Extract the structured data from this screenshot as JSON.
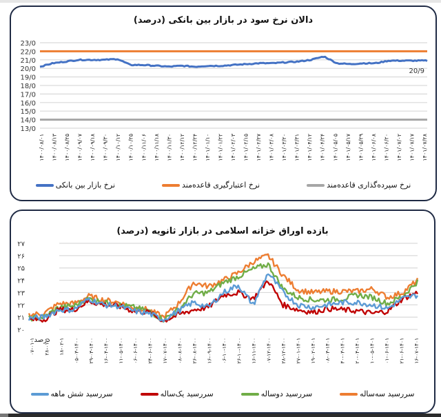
{
  "panel1": {
    "title": "دالان نرخ سود در بازار بین بانکی (درصد)",
    "legend": [
      {
        "label": "نرخ سپرده‌گذاری قاعده‌مند",
        "color": "#a6a6a6"
      },
      {
        "label": "نرخ اعتبارگیری قاعده‌مند",
        "color": "#ed7d31"
      },
      {
        "label": "نرخ بازار بین بانکی",
        "color": "#4472c4"
      }
    ]
  },
  "panel2": {
    "title": "بازده اوراق خزانه اسلامی در بازار ثانویه (درصد)",
    "unit_label": "درصد",
    "legend": [
      {
        "label": "سررسید سه‌ساله",
        "color": "#ed7d31"
      },
      {
        "label": "سررسید دوساله",
        "color": "#70ad47"
      },
      {
        "label": "سررسید یک‌ساله",
        "color": "#c00000"
      },
      {
        "label": "سررسید شش ماهه",
        "color": "#5b9bd5"
      }
    ]
  },
  "chart_data": [
    {
      "type": "line",
      "title": "دالان نرخ سود در بازار بین بانکی (درصد)",
      "xlabel": "",
      "ylabel": "",
      "ylim": [
        13,
        23
      ],
      "yticks": [
        "23/0",
        "22/0",
        "21/0",
        "20/0",
        "19/0",
        "18/0",
        "17/0",
        "16/0",
        "15/0",
        "14/0",
        "13/0"
      ],
      "categories": [
        "۱۴۰۰/۰۸/۰۱",
        "۱۴۰۰/۰۸/۱۳",
        "۱۴۰۰/۰۸/۲۵",
        "۱۴۰۰/۰۹/۰۷",
        "۱۴۰۰/۰۹/۱۸",
        "۱۴۰۰/۰۹/۳۰",
        "۱۴۰۰/۱۰/۱۲",
        "۱۴۰۰/۱۰/۲۵",
        "۱۴۰۰/۱۱/۰۶",
        "۱۴۰۰/۱۱/۱۸",
        "۱۴۰۰/۱۱/۳۰",
        "۱۴۰۰/۱۲/۱۲",
        "۱۴۰۰/۱۲/۲۴",
        "۱۴۰۱/۰۱/۱۰",
        "۱۴۰۱/۰۱/۲۲",
        "۱۴۰۱/۰۲/۰۳",
        "۱۴۰۱/۰۲/۱۵",
        "۱۴۰۱/۰۲/۲۷",
        "۱۴۰۱/۰۳/۰۸",
        "۱۴۰۱/۰۳/۲۰",
        "۱۴۰۱/۰۳/۳۱",
        "۱۴۰۱/۰۴/۱۲",
        "۱۴۰۱/۰۴/۲۴",
        "۱۴۰۱/۰۵/۰۵",
        "۱۴۰۱/۰۵/۱۷",
        "۱۴۰۱/۰۵/۲۹",
        "۱۴۰۱/۰۶/۰۸",
        "۱۴۰۱/۰۶/۲۰",
        "۱۴۰۱/۰۷/۰۲",
        "۱۴۰۱/۰۷/۱۷",
        "۱۴۰۱/۰۷/۲۸"
      ],
      "grid": true,
      "legend_position": "bottom",
      "annotations": [
        {
          "text": "20/9",
          "at": "last point of interbank rate"
        }
      ],
      "series": [
        {
          "name": "نرخ اعتبارگیری قاعده‌مند",
          "color": "#ed7d31",
          "values": [
            22,
            22,
            22,
            22,
            22,
            22,
            22,
            22,
            22,
            22,
            22,
            22,
            22,
            22,
            22,
            22,
            22,
            22,
            22,
            22,
            22,
            22,
            22,
            22,
            22,
            22,
            22,
            22,
            22,
            22,
            22
          ]
        },
        {
          "name": "نرخ سپرده‌گذاری قاعده‌مند",
          "color": "#a6a6a6",
          "values": [
            14,
            14,
            14,
            14,
            14,
            14,
            14,
            14,
            14,
            14,
            14,
            14,
            14,
            14,
            14,
            14,
            14,
            14,
            14,
            14,
            14,
            14,
            14,
            14,
            14,
            14,
            14,
            14,
            14,
            14,
            14
          ]
        },
        {
          "name": "نرخ بازار بین بانکی",
          "color": "#4472c4",
          "values": [
            20.2,
            20.6,
            20.8,
            21.0,
            21.0,
            21.0,
            21.1,
            20.4,
            20.4,
            20.3,
            20.2,
            20.3,
            20.2,
            20.3,
            20.3,
            20.4,
            20.5,
            20.6,
            20.6,
            20.7,
            20.8,
            21.0,
            21.4,
            20.6,
            20.5,
            20.6,
            20.6,
            20.9,
            20.9,
            20.9,
            20.9
          ]
        }
      ]
    },
    {
      "type": "line",
      "title": "بازده اوراق خزانه اسلامی در بازار ثانویه (درصد)",
      "xlabel": "",
      "ylabel": "درصد",
      "ylim": [
        20,
        27
      ],
      "yticks": [
        "۲۷",
        "۲۶",
        "۲۵",
        "۲۴",
        "۲۳",
        "۲۲",
        "۲۱",
        "۲۰"
      ],
      "categories": [
        "۰۷-۰۱-۱",
        "۲۸-۰۱-۱",
        "۱۸-۰۲-۱",
        "۰۵-۰۳-۱۴۰۰",
        "۲۹-۰۳-۱۴۰۰",
        "۱۶-۰۴-۱۴۰۰",
        "۱۱-۰۵-۱۴۰۰",
        "۰۶-۰۶-۱۴۰۰",
        "۲۴-۰۶-۱۴۰۰",
        "۱۷-۰۷-۱۴۰۰",
        "۰۸-۰۸-۱۴۰۰",
        "۲۶-۰۸-۱۴۰۰",
        "۱۶-۰۹-۱۴۰۰",
        "۰۶-۱۰-۱۴۰۰",
        "۲۶-۱۰-۱۴۰۰",
        "۱۶-۱۱-۱۴۰۰",
        "۰۷-۱۲-۱۴۰۰",
        "۲۸-۱۲-۱۴۰۰",
        "۲۷-۰۱-۱۴۰۱",
        "۱۹-۰۲-۱۴۰۱",
        "۰۸-۰۳-۱۴۰۱",
        "۳۰-۰۳-۱۴۰۱",
        "۲۰-۰۴-۱۴۰۱",
        "۱۰-۰۵-۱۴۰۱",
        "۰۱-۰۶-۱۴۰۱",
        "۲۱-۰۶-۱۴۰۱",
        "۱۶-۰۷-۱۴۰۱"
      ],
      "grid": true,
      "legend_position": "bottom",
      "series": [
        {
          "name": "سررسید سه‌ساله",
          "color": "#ed7d31",
          "values": [
            21.2,
            21.3,
            22.1,
            22.1,
            22.7,
            22.4,
            22.2,
            21.8,
            21.6,
            21.0,
            22.1,
            23.8,
            23.5,
            24.0,
            24.6,
            25.5,
            26.0,
            24.4,
            23.2,
            23.0,
            23.1,
            23.1,
            23.1,
            23.3,
            22.6,
            23.0,
            24.0
          ]
        },
        {
          "name": "سررسید دوساله",
          "color": "#70ad47",
          "values": [
            20.9,
            21.0,
            21.8,
            21.9,
            22.5,
            22.2,
            22.0,
            21.8,
            21.5,
            20.8,
            21.6,
            22.9,
            23.0,
            23.8,
            24.3,
            24.9,
            25.3,
            23.3,
            22.6,
            22.4,
            22.4,
            22.5,
            22.8,
            22.6,
            22.1,
            22.7,
            23.9
          ]
        },
        {
          "name": "سررسید یک‌ساله",
          "color": "#c00000",
          "values": [
            20.8,
            20.8,
            21.6,
            21.6,
            22.3,
            22.0,
            21.9,
            21.5,
            21.4,
            20.7,
            21.2,
            21.6,
            21.8,
            22.8,
            23.0,
            22.5,
            24.0,
            22.0,
            21.6,
            21.4,
            21.7,
            21.6,
            21.5,
            21.3,
            21.5,
            22.5,
            23.0
          ]
        },
        {
          "name": "سررسید شش ماهه",
          "color": "#5b9bd5",
          "values": [
            20.9,
            21.0,
            21.6,
            21.6,
            22.5,
            22.0,
            21.9,
            21.5,
            21.3,
            20.8,
            21.5,
            22.2,
            21.8,
            23.0,
            23.6,
            22.0,
            24.6,
            23.0,
            22.0,
            21.8,
            22.0,
            22.2,
            22.2,
            22.0,
            21.7,
            22.5,
            22.8
          ]
        }
      ]
    }
  ]
}
